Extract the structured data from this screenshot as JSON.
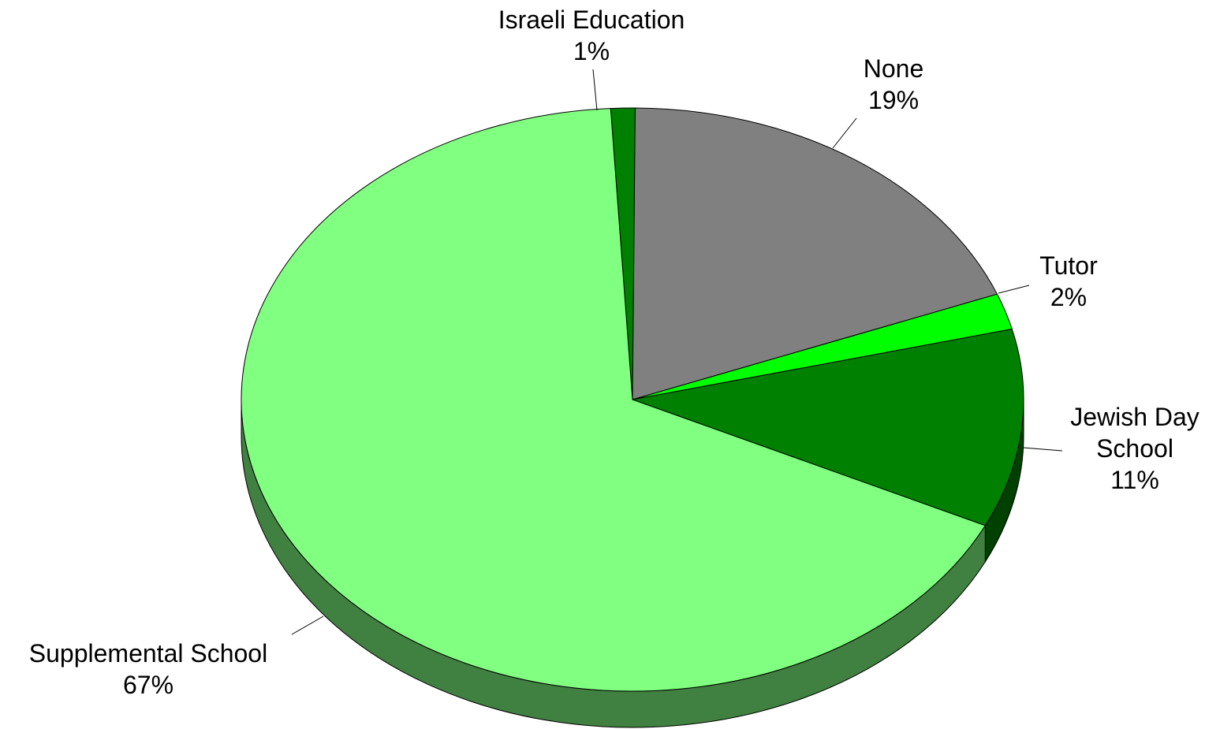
{
  "chart_data": {
    "type": "pie",
    "style": "3d",
    "slices": [
      {
        "label_lines": [
          "Israeli Education"
        ],
        "pct_label": "1%",
        "value": 1,
        "color": "#008000"
      },
      {
        "label_lines": [
          "None"
        ],
        "pct_label": "19%",
        "value": 19,
        "color": "#808080"
      },
      {
        "label_lines": [
          "Tutor"
        ],
        "pct_label": "2%",
        "value": 2,
        "color": "#00ff00"
      },
      {
        "label_lines": [
          "Jewish Day",
          "School"
        ],
        "pct_label": "11%",
        "value": 11,
        "color": "#008000"
      },
      {
        "label_lines": [
          "Supplemental School"
        ],
        "pct_label": "67%",
        "value": 67,
        "color": "#80ff80"
      }
    ],
    "side_colors": {
      "#80ff80": "#408040",
      "#008000": "#004000",
      "#00ff00": "#008000",
      "#808080": "#404040"
    },
    "legend": "none"
  }
}
